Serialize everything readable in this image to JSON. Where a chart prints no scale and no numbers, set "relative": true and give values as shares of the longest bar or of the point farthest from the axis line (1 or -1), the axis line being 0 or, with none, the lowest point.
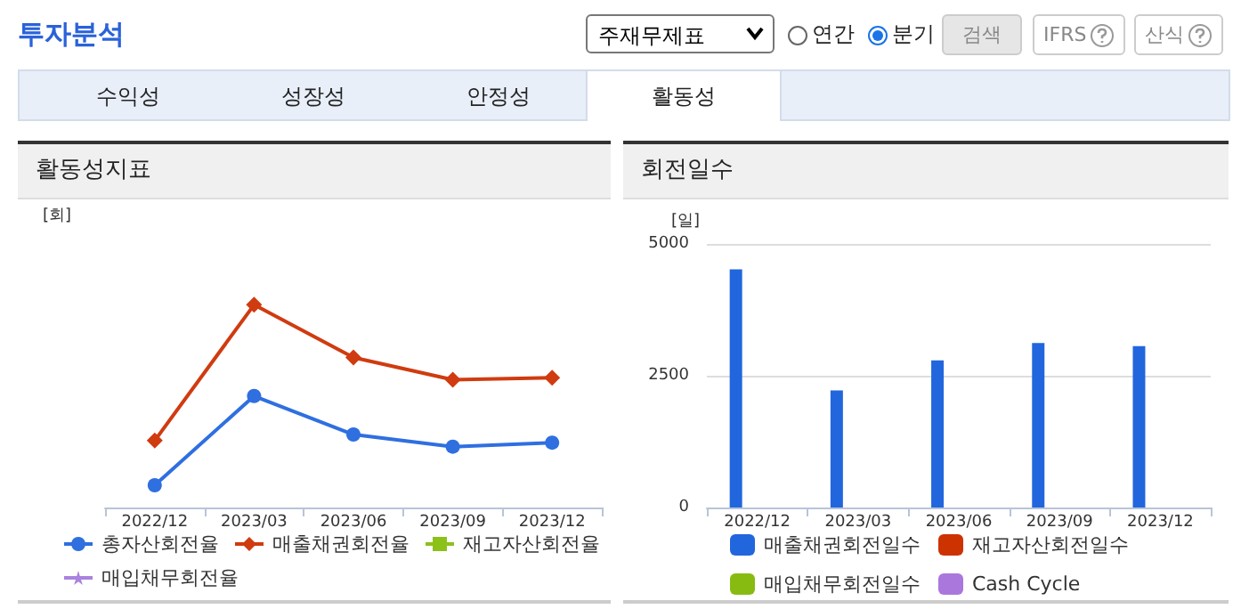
{
  "chart_data": [
    {
      "type": "other",
      "annotations": [
        "투자분석",
        "주재무제표",
        "연간",
        "분기",
        "검색",
        "IFRS",
        "산식",
        "수익성",
        "성장성",
        "안정성",
        "활동성"
      ]
    },
    {
      "type": "line",
      "title": "활동성지표",
      "ylabel": "[회]",
      "categories": [
        "2022/12",
        "2023/03",
        "2023/06",
        "2023/09",
        "2023/12"
      ],
      "relative": true,
      "legend": "bottom",
      "series": [
        {
          "name": "총자산회전율",
          "color": "#2f6fe0",
          "marker": "circle",
          "values": [
            0.11,
            0.55,
            0.36,
            0.3,
            0.32
          ]
        },
        {
          "name": "매출채권회전율",
          "color": "#d03b10",
          "marker": "diamond",
          "values": [
            0.33,
            1,
            0.74,
            0.63,
            0.64
          ]
        },
        {
          "name": "재고자산회전율",
          "color": "#8cc11a",
          "marker": "square",
          "values": [
            null,
            null,
            null,
            null,
            null
          ]
        },
        {
          "name": "매입채무회전율",
          "color": "#a983de",
          "marker": "star",
          "values": [
            null,
            null,
            null,
            null,
            null
          ]
        }
      ]
    },
    {
      "type": "bar",
      "title": "회전일수",
      "ylabel": "[일]",
      "categories": [
        "2022/12",
        "2023/03",
        "2023/06",
        "2023/09",
        "2023/12"
      ],
      "ylim": [
        0,
        5000
      ],
      "yticks": [
        0,
        2500,
        5000
      ],
      "grid": "y",
      "legend": "bottom",
      "series": [
        {
          "name": "매출채권회전일수",
          "color": "#2266dd",
          "values": [
            4520,
            2220,
            2790,
            3120,
            3060
          ]
        },
        {
          "name": "재고자산회전일수",
          "color": "#cc3300",
          "values": [
            null,
            null,
            null,
            null,
            null
          ]
        },
        {
          "name": "매입채무회전일수",
          "color": "#88bb11",
          "values": [
            null,
            null,
            null,
            null,
            null
          ]
        },
        {
          "name": "Cash Cycle",
          "color": "#aa77dd",
          "values": [
            null,
            null,
            null,
            null,
            null
          ]
        }
      ]
    }
  ]
}
